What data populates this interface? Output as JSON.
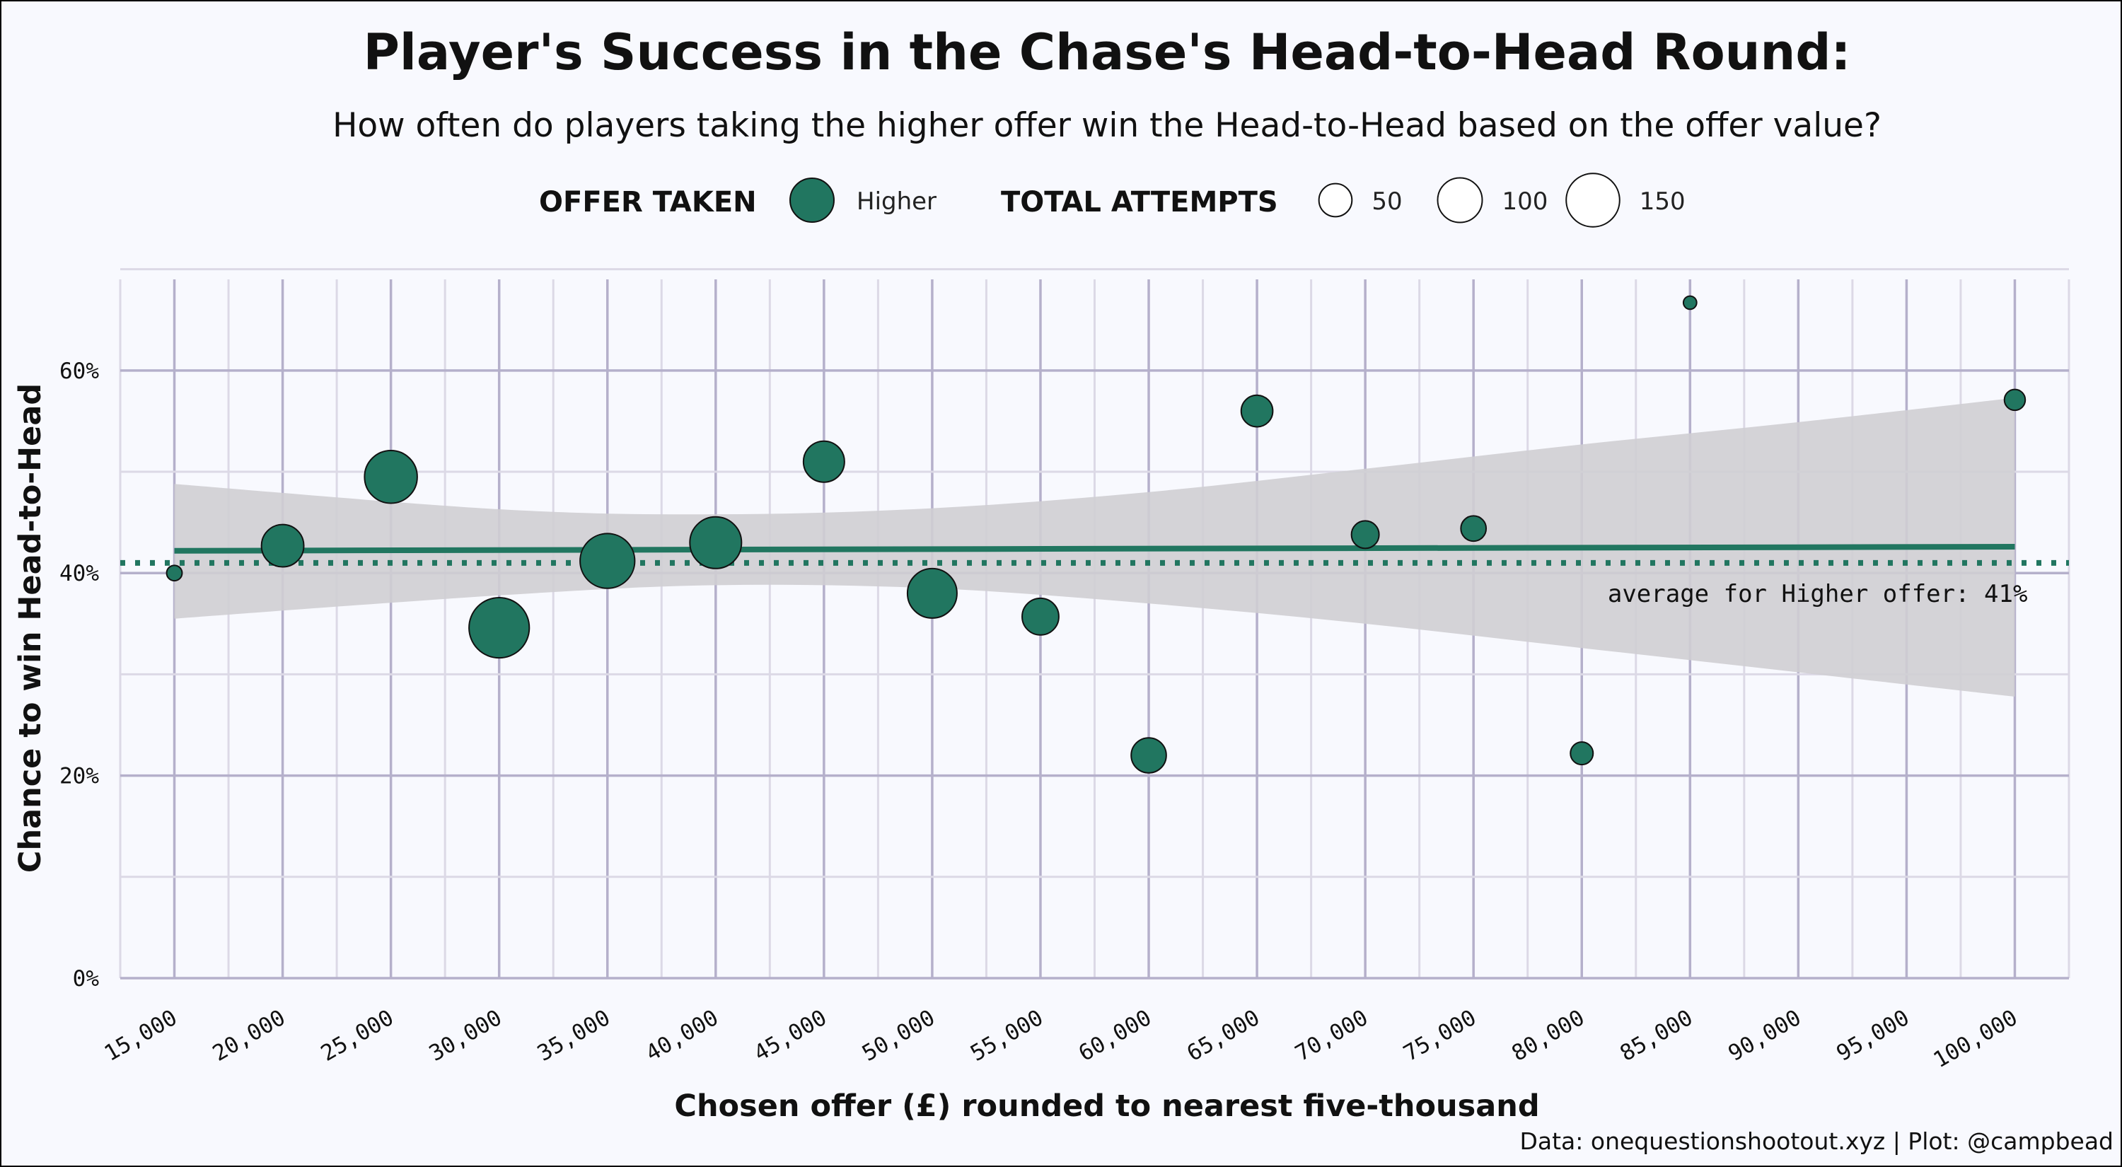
{
  "colors": {
    "background": "#f8f9fe",
    "point_fill": "#217660",
    "trend_line": "#217660",
    "ribbon": "#cfced3",
    "grid_major": "#b5b0cb",
    "grid_minor": "#dcd9e6"
  },
  "legend": {
    "offer_title": "OFFER TAKEN",
    "offer_item": "Higher",
    "size_title": "TOTAL ATTEMPTS",
    "size_items": [
      50,
      100,
      150
    ],
    "size_labels": [
      "50",
      "100",
      "150"
    ]
  },
  "caption": "Data: onequestionshootout.xyz | Plot: @campbead",
  "chart_data": {
    "type": "scatter",
    "title": "Player's Success in the Chase's Head-to-Head Round:",
    "subtitle": "How often do players taking the higher offer win the Head-to-Head based on the offer value?",
    "xlabel": "Chosen offer (£) rounded to nearest five-thousand",
    "ylabel": "Chance to win Head-to-Head",
    "xlim": [
      12500,
      102500
    ],
    "ylim": [
      0,
      0.69
    ],
    "x_ticks": [
      15000,
      20000,
      25000,
      30000,
      35000,
      40000,
      45000,
      50000,
      55000,
      60000,
      65000,
      70000,
      75000,
      80000,
      85000,
      90000,
      95000,
      100000
    ],
    "x_tick_labels": [
      "15,000",
      "20,000",
      "25,000",
      "30,000",
      "35,000",
      "40,000",
      "45,000",
      "50,000",
      "55,000",
      "60,000",
      "65,000",
      "70,000",
      "75,000",
      "80,000",
      "85,000",
      "90,000",
      "95,000",
      "100,000"
    ],
    "y_ticks": [
      0,
      0.2,
      0.4,
      0.6
    ],
    "y_tick_labels": [
      "0%",
      "20%",
      "40%",
      "60%"
    ],
    "grid": true,
    "legend_position": "top",
    "series": [
      {
        "name": "Higher",
        "points": [
          {
            "x": 15000,
            "y": 0.4,
            "size": 5
          },
          {
            "x": 20000,
            "y": 0.427,
            "size": 70
          },
          {
            "x": 25000,
            "y": 0.495,
            "size": 115
          },
          {
            "x": 30000,
            "y": 0.346,
            "size": 155
          },
          {
            "x": 35000,
            "y": 0.412,
            "size": 125
          },
          {
            "x": 40000,
            "y": 0.43,
            "size": 110
          },
          {
            "x": 45000,
            "y": 0.51,
            "size": 65
          },
          {
            "x": 50000,
            "y": 0.38,
            "size": 100
          },
          {
            "x": 55000,
            "y": 0.357,
            "size": 50
          },
          {
            "x": 60000,
            "y": 0.22,
            "size": 45
          },
          {
            "x": 65000,
            "y": 0.56,
            "size": 35
          },
          {
            "x": 70000,
            "y": 0.438,
            "size": 25
          },
          {
            "x": 75000,
            "y": 0.444,
            "size": 20
          },
          {
            "x": 80000,
            "y": 0.222,
            "size": 15
          },
          {
            "x": 85000,
            "y": 0.667,
            "size": 3
          },
          {
            "x": 100000,
            "y": 0.571,
            "size": 12
          }
        ]
      }
    ],
    "trend": {
      "type": "linear fit with confidence band",
      "x_range": [
        15000,
        100000
      ],
      "y_start": 0.422,
      "y_end": 0.426,
      "band_lower": [
        {
          "x": 15000,
          "y": 0.355
        },
        {
          "x": 30000,
          "y": 0.378
        },
        {
          "x": 40000,
          "y": 0.388
        },
        {
          "x": 50000,
          "y": 0.385
        },
        {
          "x": 60000,
          "y": 0.37
        },
        {
          "x": 70000,
          "y": 0.35
        },
        {
          "x": 80000,
          "y": 0.326
        },
        {
          "x": 90000,
          "y": 0.302
        },
        {
          "x": 100000,
          "y": 0.278
        }
      ],
      "band_upper": [
        {
          "x": 15000,
          "y": 0.488
        },
        {
          "x": 30000,
          "y": 0.463
        },
        {
          "x": 40000,
          "y": 0.458
        },
        {
          "x": 50000,
          "y": 0.464
        },
        {
          "x": 60000,
          "y": 0.48
        },
        {
          "x": 70000,
          "y": 0.503
        },
        {
          "x": 80000,
          "y": 0.527
        },
        {
          "x": 90000,
          "y": 0.549
        },
        {
          "x": 100000,
          "y": 0.573
        }
      ]
    },
    "reference_line": {
      "y": 0.41,
      "style": "dotted"
    },
    "annotations": [
      {
        "text": "average for Higher offer: 41%",
        "x": 100000,
        "y": 0.41
      }
    ]
  }
}
